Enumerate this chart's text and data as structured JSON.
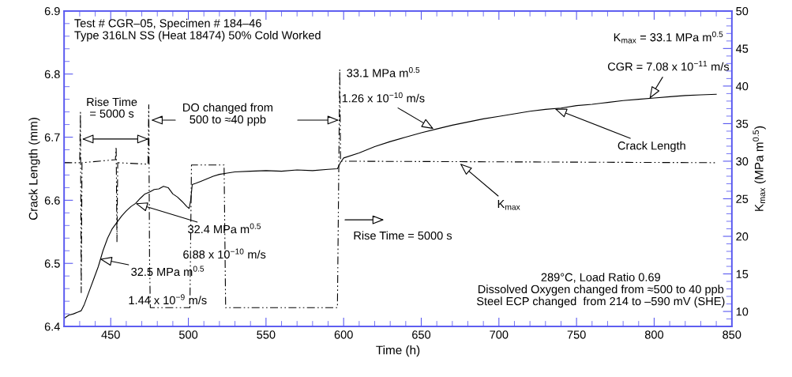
{
  "chart_data": {
    "type": "line",
    "xlabel": "Time (h)",
    "ylabel": "Crack Length (mm)",
    "y2label": "K$_{max}$ (MPa m$^{0.5}$)",
    "xlim": [
      420,
      850
    ],
    "xticks": [
      450,
      500,
      550,
      600,
      650,
      700,
      750,
      800,
      850
    ],
    "ylim": [
      6.4,
      6.9
    ],
    "yticks": [
      6.4,
      6.5,
      6.6,
      6.7,
      6.8,
      6.9
    ],
    "y2lim": [
      8,
      50
    ],
    "y2ticks": [
      10,
      15,
      20,
      25,
      30,
      35,
      40,
      45,
      50
    ],
    "grid": false,
    "legend": false,
    "marker": "none",
    "series": [
      {
        "color": "#000000",
        "line_style": "solid",
        "x": [
          420,
          423,
          426,
          429,
          431,
          433,
          436,
          439,
          442,
          445,
          448,
          451,
          454,
          457,
          460,
          463,
          466,
          469,
          472,
          475,
          478,
          481,
          484,
          487,
          490,
          493,
          496,
          499,
          500.5,
          501.5,
          502.5,
          505,
          508,
          512,
          516,
          520,
          525,
          530,
          540,
          550,
          560,
          570,
          580,
          590,
          596,
          598,
          600,
          610,
          620,
          630,
          640,
          650,
          660,
          670,
          680,
          690,
          700,
          710,
          720,
          730,
          740,
          750,
          760,
          770,
          780,
          790,
          800,
          810,
          820,
          830,
          840
        ],
        "values": [
          6.413,
          6.418,
          6.42,
          6.423,
          6.425,
          6.435,
          6.455,
          6.475,
          6.495,
          6.52,
          6.54,
          6.555,
          6.565,
          6.575,
          6.583,
          6.59,
          6.595,
          6.603,
          6.61,
          6.613,
          6.617,
          6.618,
          6.622,
          6.62,
          6.61,
          6.605,
          6.598,
          6.59,
          6.587,
          6.6,
          6.625,
          6.627,
          6.63,
          6.634,
          6.638,
          6.641,
          6.643,
          6.645,
          6.646,
          6.647,
          6.646,
          6.648,
          6.647,
          6.649,
          6.65,
          6.66,
          6.667,
          6.675,
          6.685,
          6.693,
          6.7,
          6.707,
          6.713,
          6.719,
          6.724,
          6.729,
          6.733,
          6.737,
          6.741,
          6.744,
          6.746,
          6.75,
          6.752,
          6.755,
          6.758,
          6.76,
          6.762,
          6.764,
          6.766,
          6.767,
          6.768
        ]
      },
      {
        "color": "#000000",
        "line_style": "dashed",
        "axis": "y2",
        "x": [
          420,
          430,
          430.5,
          431,
          431.5,
          453,
          453.5,
          454,
          454.5,
          474,
          474.5,
          475,
          475.5,
          501,
          502,
          523,
          524,
          596,
          597.5,
          598,
          840
        ],
        "values": [
          29.8,
          29.8,
          36.5,
          12.5,
          29.8,
          30.2,
          31.9,
          19.3,
          29.8,
          29.6,
          37.5,
          16.9,
          10.5,
          10.5,
          29.5,
          29.5,
          10.5,
          10.5,
          42.2,
          30,
          29.8
        ]
      }
    ],
    "annotations": [
      "Test # CGR–05, Specimen # 184–46\nType 316LN SS (Heat 18474) 50% Cold Worked",
      "Rise Time\n= 5000 s",
      "DO changed from\n500 to ≈40 ppb",
      "Rise Time = 5000 s",
      {
        "text": "32.5 MPa m$^{0.5}$",
        "x": 443,
        "y": 6.507
      },
      "1.44 x 10$^{−9}$ m/s",
      {
        "text": "32.4 MPa m$^{0.5}$",
        "x": 466,
        "y": 6.595
      },
      "6.88 x 10$^{−10}$ m/s",
      "33.1 MPa m$^{0.5}$",
      {
        "text": "1.26 x 10$^{−10}$ m/s",
        "x": 658,
        "y": 6.713
      },
      "K$_{max}$ = 33.1 MPa m$^{0.5}$",
      {
        "text": "CGR = 7.08 x 10$^{−11}$ m/s",
        "x": 797,
        "y": 6.761
      },
      {
        "text": "Crack Length",
        "x": 736,
        "y": 6.745
      },
      {
        "text": "K$_{max}$",
        "x": 675,
        "y": 6.658
      },
      "289°C, Load Ratio 0.69\nDissolved Oxygen changed from ≈500 to 40 ppb\nSteel ECP changed  from 214 to –590 mV (SHE)"
    ]
  }
}
